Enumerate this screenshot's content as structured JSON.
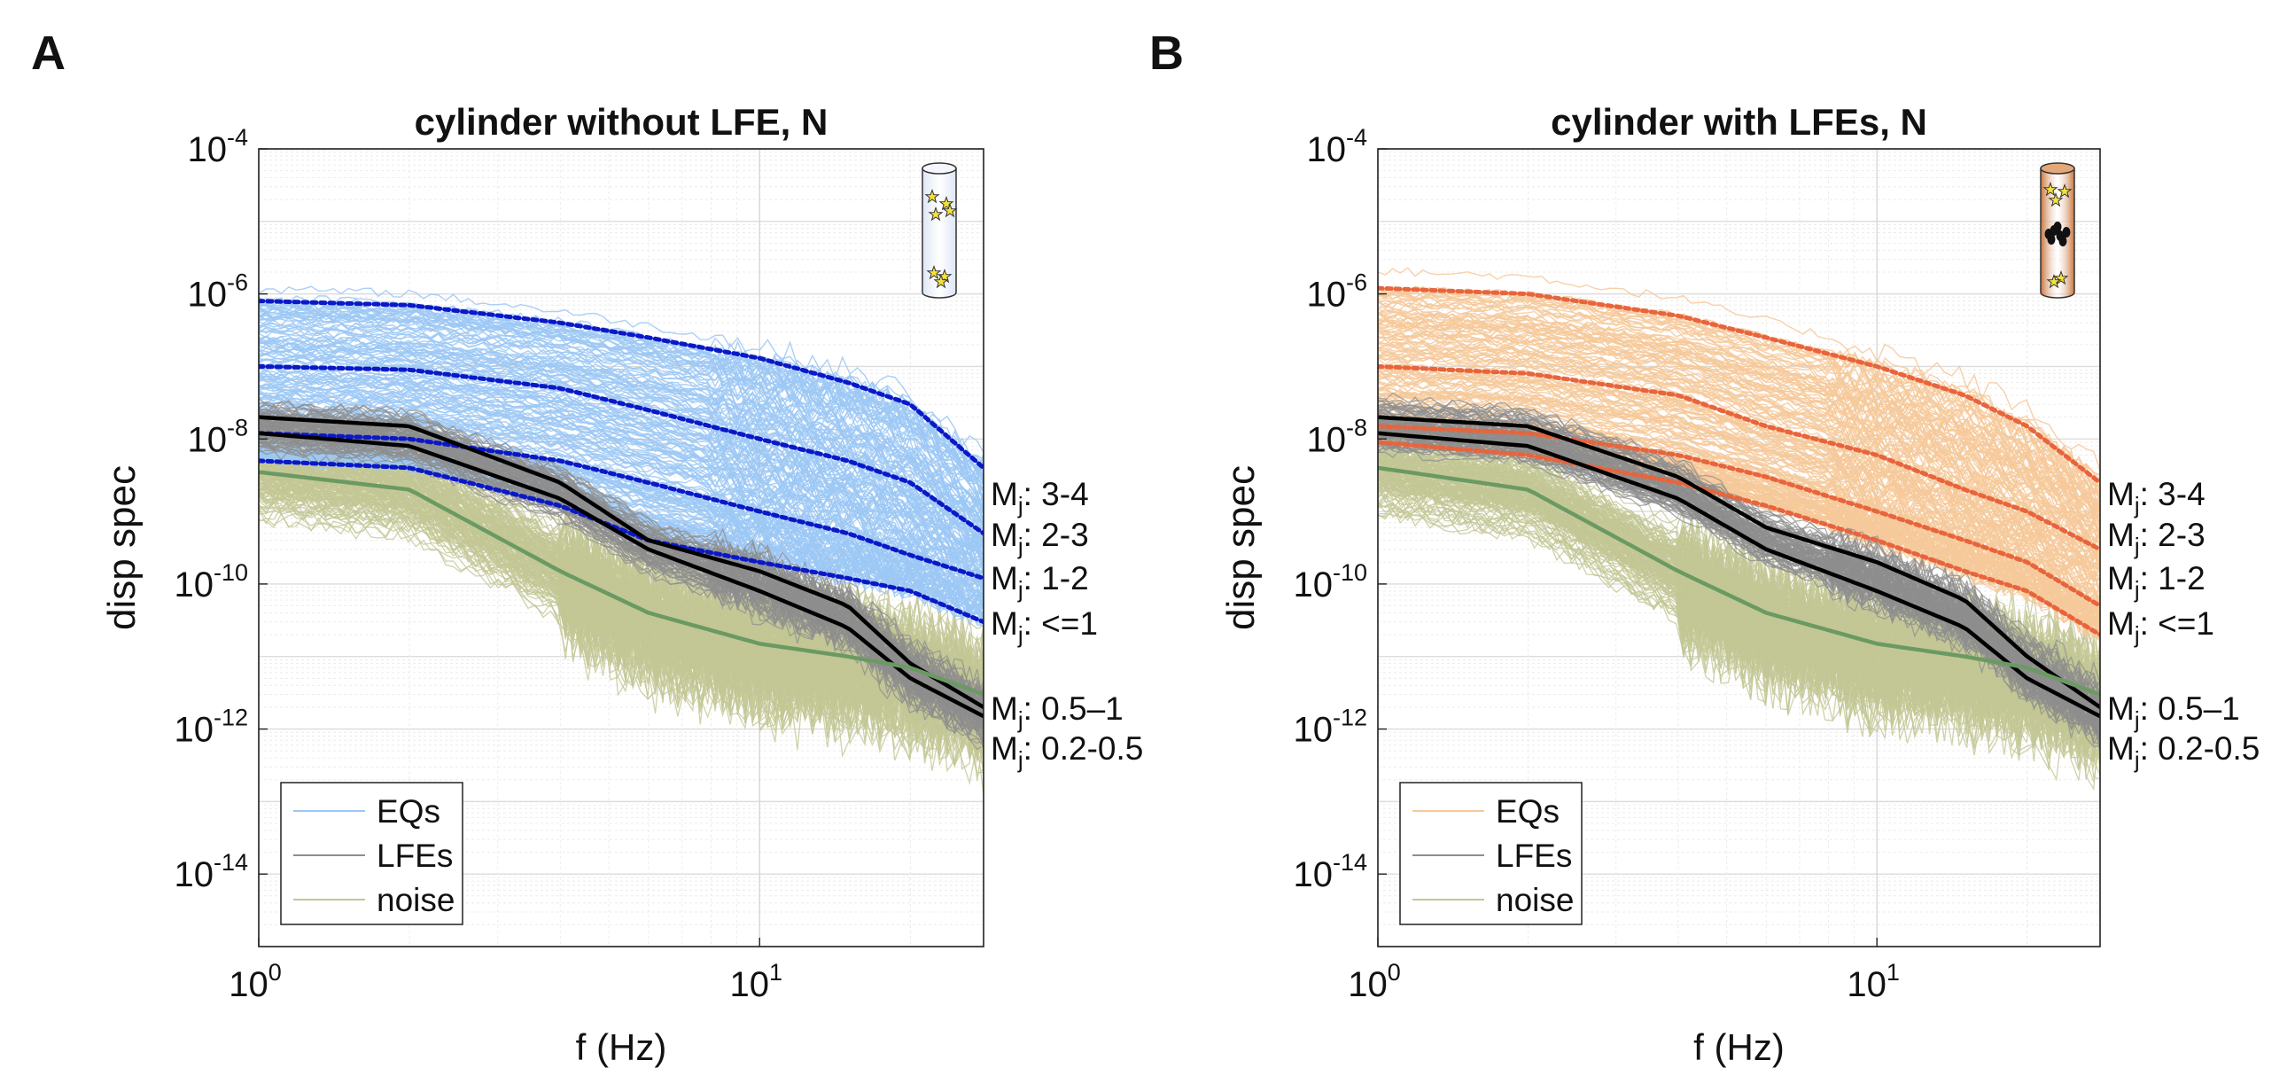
{
  "colors": {
    "eq_A": "#9cc8f5",
    "eq_B": "#f6c99a",
    "lfe": "#8e8e8e",
    "noise": "#c3c795",
    "noise_mean": "#6a9a62",
    "median_A": "#0a18c8",
    "median_B": "#e8643c",
    "lfe_median": "#000000",
    "cylinder_A": "#dde6f5",
    "cylinder_B": "#c9743a"
  },
  "chart_data": [
    {
      "panel_label": "A",
      "title": "cylinder without LFE, N",
      "type": "line",
      "xlabel": "f (Hz)",
      "ylabel": "disp spec",
      "x_scale": "log",
      "y_scale": "log",
      "xlim": [
        1,
        28
      ],
      "ylim": [
        1e-15,
        0.0001
      ],
      "x_ticks": [
        {
          "base": "10",
          "exp": "0"
        },
        {
          "base": "10",
          "exp": "1"
        }
      ],
      "y_ticks": [
        {
          "base": "10",
          "exp": "-4"
        },
        {
          "base": "10",
          "exp": "-6"
        },
        {
          "base": "10",
          "exp": "-8"
        },
        {
          "base": "10",
          "exp": "-10"
        },
        {
          "base": "10",
          "exp": "-12"
        },
        {
          "base": "10",
          "exp": "-14"
        }
      ],
      "grid": true,
      "legend": {
        "placement": "bottom-left",
        "entries": [
          "EQs",
          "LFEs",
          "noise"
        ]
      },
      "x": [
        1,
        2,
        4,
        6,
        10,
        15,
        20,
        28
      ],
      "series": [
        {
          "group": "EQs",
          "style": "dotted",
          "values": [
            8e-07,
            7e-07,
            4e-07,
            2.5e-07,
            1.3e-07,
            6e-08,
            3e-08,
            4e-09
          ]
        },
        {
          "group": "EQs",
          "style": "dotted",
          "values": [
            1e-07,
            9e-08,
            5e-08,
            2.5e-08,
            1e-08,
            5e-09,
            2.5e-09,
            5e-10
          ]
        },
        {
          "group": "EQs",
          "style": "dotted",
          "values": [
            1.2e-08,
            1e-08,
            5e-09,
            2.5e-09,
            1e-09,
            5e-10,
            2.5e-10,
            1.2e-10
          ]
        },
        {
          "group": "EQs",
          "style": "dotted",
          "values": [
            5e-09,
            4e-09,
            1.2e-09,
            4e-10,
            2e-10,
            1.2e-10,
            8e-11,
            3e-11
          ]
        },
        {
          "group": "LFEs",
          "style": "solid",
          "values": [
            2e-08,
            1.5e-08,
            2.5e-09,
            4e-10,
            1.5e-10,
            5e-11,
            8e-12,
            2e-12
          ]
        },
        {
          "group": "LFEs",
          "style": "solid",
          "values": [
            1.2e-08,
            8e-09,
            1.5e-09,
            3e-10,
            8e-11,
            2.5e-11,
            5e-12,
            1.5e-12
          ]
        },
        {
          "group": "noise",
          "style": "solid",
          "values": [
            3.5e-09,
            2e-09,
            1.5e-10,
            4e-11,
            1.5e-11,
            1e-11,
            7e-12,
            3e-12
          ]
        }
      ],
      "annotations": [
        {
          "base": "M",
          "sub": "j",
          "text": ": 3-4"
        },
        {
          "base": "M",
          "sub": "j",
          "text": ": 2-3"
        },
        {
          "base": "M",
          "sub": "j",
          "text": ": 1-2"
        },
        {
          "base": "M",
          "sub": "j",
          "text": ": <=1"
        },
        {
          "base": "M",
          "sub": "j",
          "text": ": 0.5–1"
        },
        {
          "base": "M",
          "sub": "j",
          "text": ": 0.2-0.5"
        }
      ]
    },
    {
      "panel_label": "B",
      "title": "cylinder with LFEs, N",
      "type": "line",
      "xlabel": "f (Hz)",
      "ylabel": "disp spec",
      "x_scale": "log",
      "y_scale": "log",
      "xlim": [
        1,
        28
      ],
      "ylim": [
        1e-15,
        0.0001
      ],
      "x_ticks": [
        {
          "base": "10",
          "exp": "0"
        },
        {
          "base": "10",
          "exp": "1"
        }
      ],
      "y_ticks": [
        {
          "base": "10",
          "exp": "-4"
        },
        {
          "base": "10",
          "exp": "-6"
        },
        {
          "base": "10",
          "exp": "-8"
        },
        {
          "base": "10",
          "exp": "-10"
        },
        {
          "base": "10",
          "exp": "-12"
        },
        {
          "base": "10",
          "exp": "-14"
        }
      ],
      "grid": true,
      "legend": {
        "placement": "bottom-left",
        "entries": [
          "EQs",
          "LFEs",
          "noise"
        ]
      },
      "x": [
        1,
        2,
        4,
        6,
        10,
        15,
        20,
        28
      ],
      "series": [
        {
          "group": "EQs",
          "style": "dotted",
          "values": [
            1.2e-06,
            1e-06,
            5e-07,
            2.5e-07,
            1e-07,
            4e-08,
            1.5e-08,
            2.5e-09
          ]
        },
        {
          "group": "EQs",
          "style": "dotted",
          "values": [
            1e-07,
            8e-08,
            4e-08,
            1.5e-08,
            6e-09,
            2e-09,
            1e-09,
            3e-10
          ]
        },
        {
          "group": "EQs",
          "style": "dotted",
          "values": [
            1.5e-08,
            1.2e-08,
            6e-09,
            3e-09,
            1e-09,
            4e-10,
            2e-10,
            5e-11
          ]
        },
        {
          "group": "EQs",
          "style": "dotted",
          "values": [
            9e-09,
            6e-09,
            2.5e-09,
            1.2e-09,
            4e-10,
            1.5e-10,
            8e-11,
            2e-11
          ]
        },
        {
          "group": "LFEs",
          "style": "solid",
          "values": [
            2e-08,
            1.5e-08,
            3e-09,
            6e-10,
            2e-10,
            6e-11,
            1e-11,
            2e-12
          ]
        },
        {
          "group": "LFEs",
          "style": "solid",
          "values": [
            1.2e-08,
            8e-09,
            1.5e-09,
            3e-10,
            8e-11,
            2.5e-11,
            5e-12,
            1.5e-12
          ]
        },
        {
          "group": "noise",
          "style": "solid",
          "values": [
            4e-09,
            2e-09,
            1.5e-10,
            4e-11,
            1.5e-11,
            1e-11,
            7e-12,
            3e-12
          ]
        }
      ],
      "annotations": [
        {
          "base": "M",
          "sub": "j",
          "text": ": 3-4"
        },
        {
          "base": "M",
          "sub": "j",
          "text": ": 2-3"
        },
        {
          "base": "M",
          "sub": "j",
          "text": ": 1-2"
        },
        {
          "base": "M",
          "sub": "j",
          "text": ": <=1"
        },
        {
          "base": "M",
          "sub": "j",
          "text": ": 0.5–1"
        },
        {
          "base": "M",
          "sub": "j",
          "text": ": 0.2-0.5"
        }
      ]
    }
  ]
}
